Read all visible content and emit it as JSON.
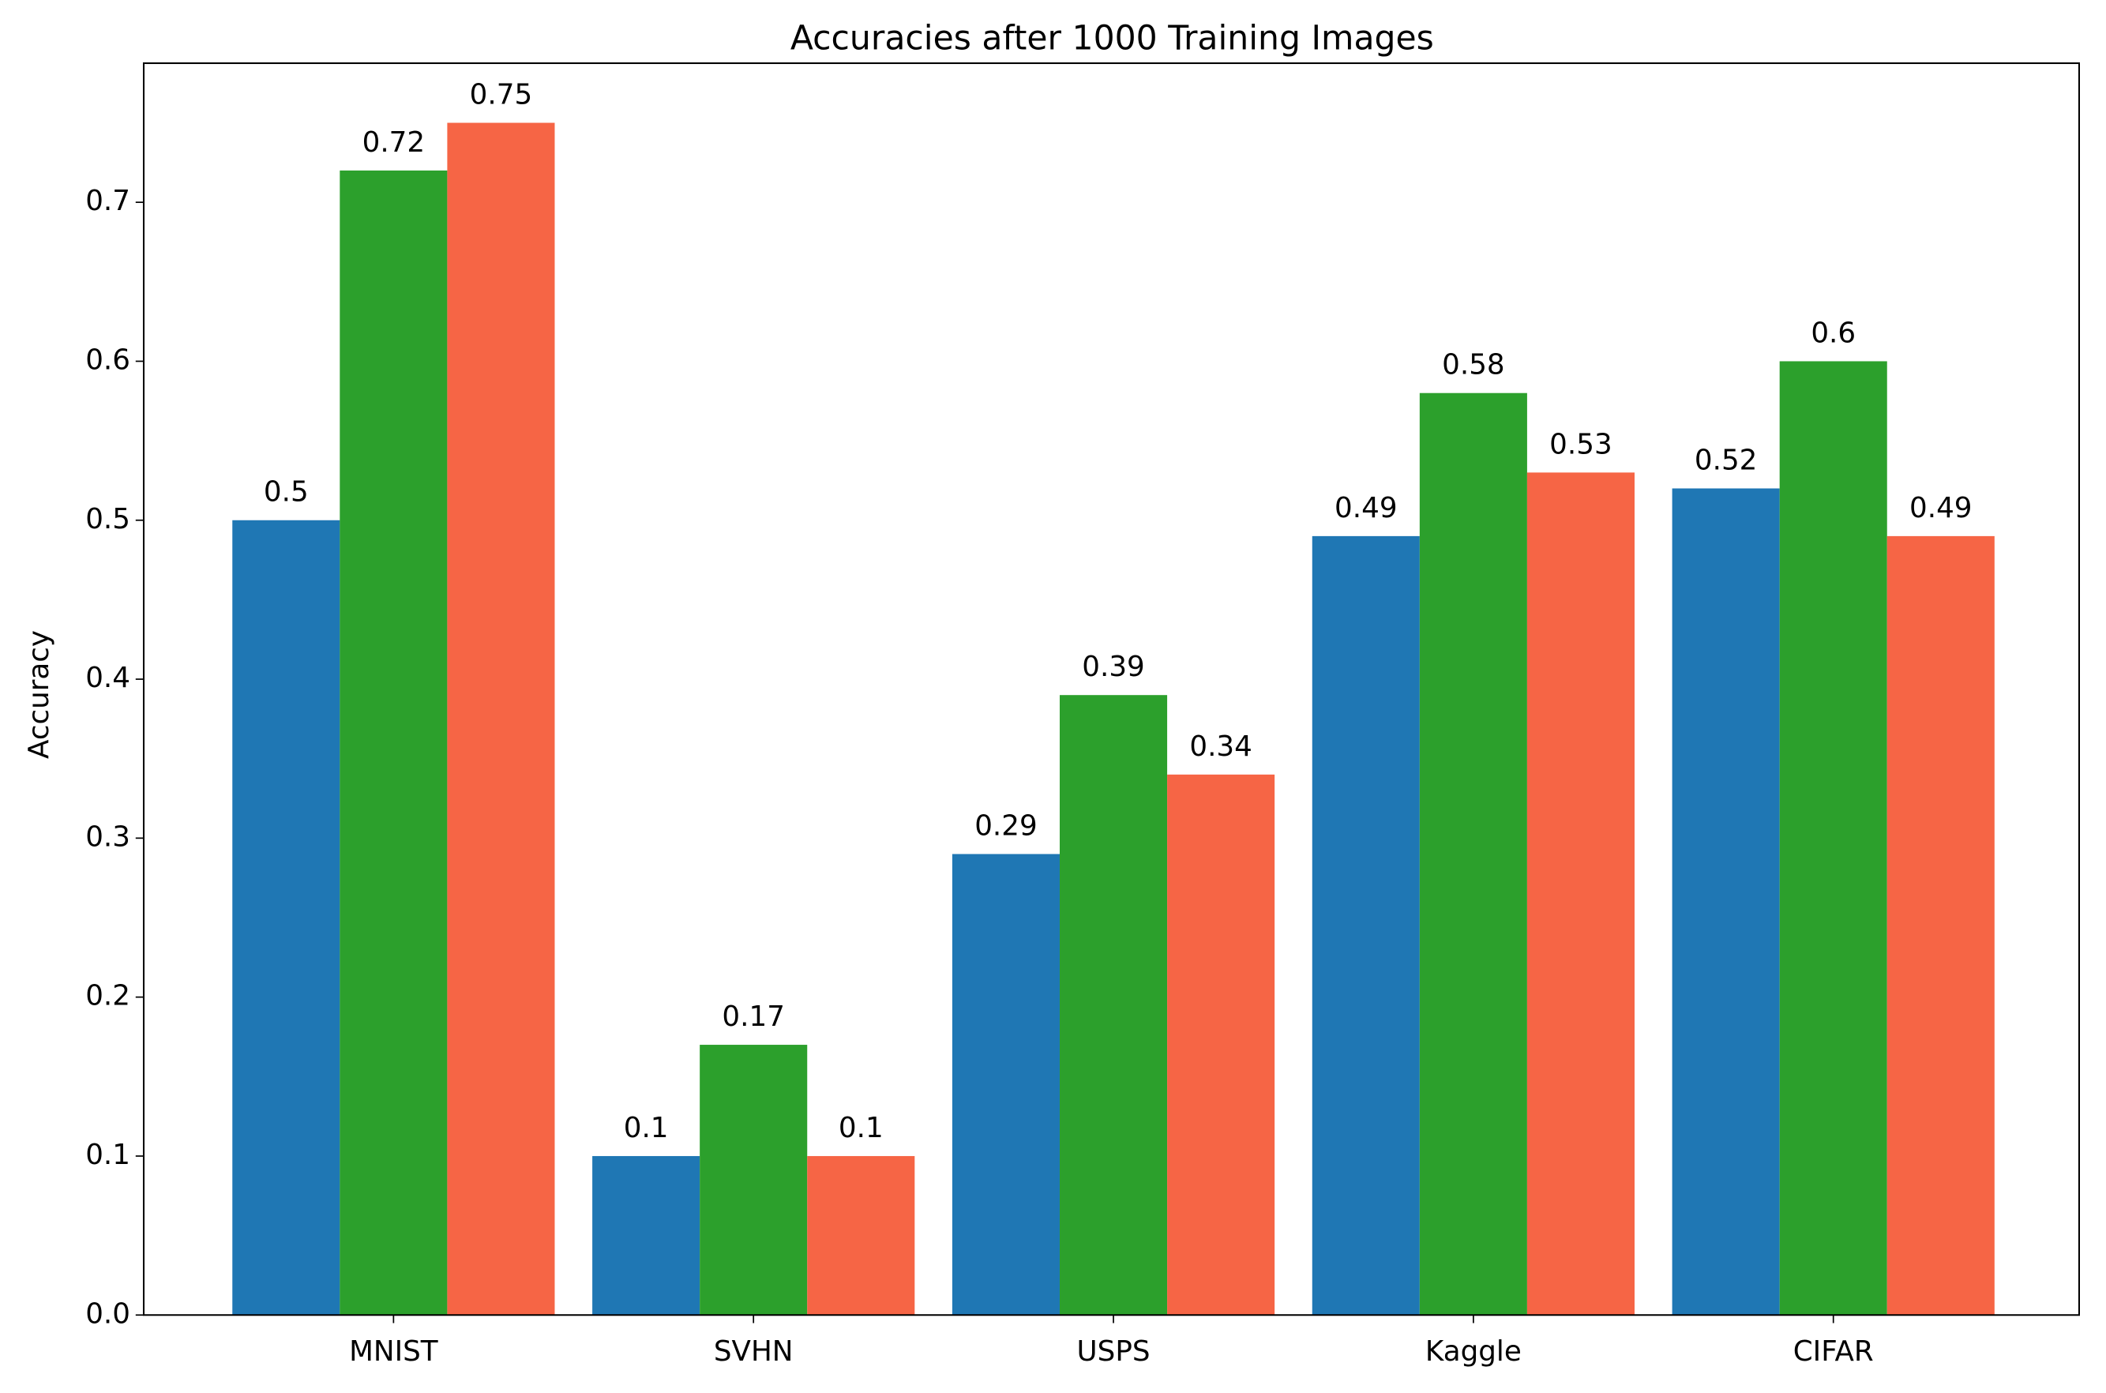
{
  "chart_data": {
    "type": "bar",
    "title": "Accuracies after 1000 Training Images",
    "y_label": "Accuracy",
    "categories": [
      "MNIST",
      "SVHN",
      "USPS",
      "Kaggle",
      "CIFAR"
    ],
    "series": [
      {
        "color": "#1f77b4",
        "values": [
          0.5,
          0.1,
          0.29,
          0.49,
          0.52
        ]
      },
      {
        "color": "#2ca02c",
        "values": [
          0.72,
          0.17,
          0.39,
          0.58,
          0.6
        ]
      },
      {
        "color": "#f66545",
        "values": [
          0.75,
          0.1,
          0.34,
          0.53,
          0.49
        ]
      }
    ],
    "ylim": [
      0,
      0.7875
    ],
    "yticks": [
      {
        "value": 0,
        "label": "0.0"
      },
      0.1,
      0.2,
      0.3,
      0.4,
      0.5,
      0.6,
      0.7
    ]
  }
}
